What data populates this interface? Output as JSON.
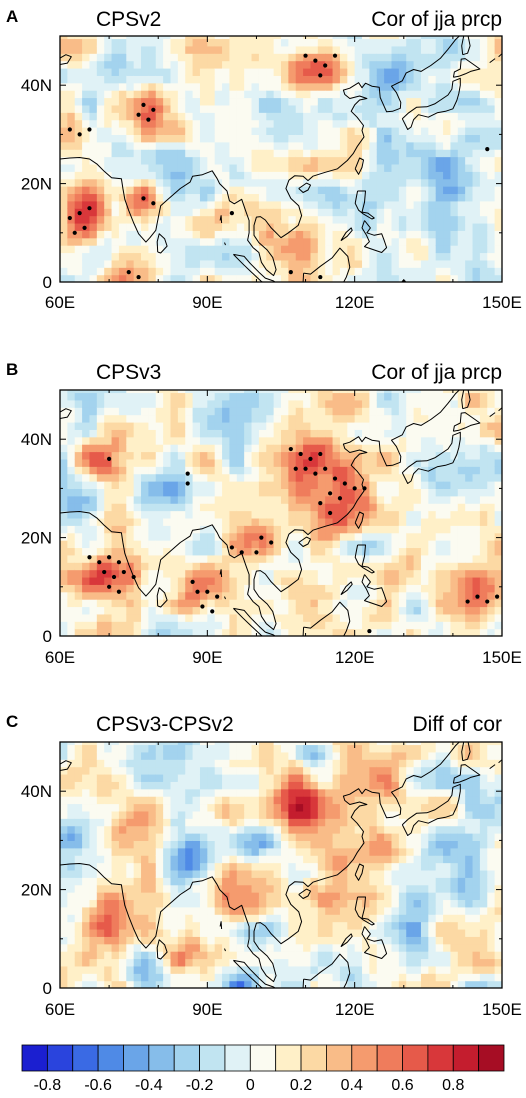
{
  "chart_data": [
    {
      "type": "heatmap",
      "panel_label": "A",
      "model_label": "CPSv2",
      "title": "Cor of jja prcp",
      "x_ticks": [
        "60E",
        "90E",
        "120E",
        "150E"
      ],
      "y_ticks": [
        "40N",
        "20N",
        "0"
      ],
      "xlim": [
        60,
        150
      ],
      "ylim": [
        0,
        50
      ],
      "blobs": [
        {
          "x": 64,
          "y": 14,
          "r": 6,
          "v": 0.55
        },
        {
          "x": 62,
          "y": 30,
          "r": 4,
          "v": 0.45
        },
        {
          "x": 78,
          "y": 35,
          "r": 5,
          "v": 0.5
        },
        {
          "x": 76,
          "y": 16,
          "r": 4,
          "v": 0.45
        },
        {
          "x": 74,
          "y": 3,
          "r": 5,
          "v": 0.4
        },
        {
          "x": 114,
          "y": 44,
          "r": 6,
          "v": 0.55
        },
        {
          "x": 95,
          "y": 14,
          "r": 5,
          "v": 0.35
        },
        {
          "x": 110,
          "y": 8,
          "r": 6,
          "v": 0.45
        },
        {
          "x": 100,
          "y": 28,
          "r": 6,
          "v": 0.25
        },
        {
          "x": 88,
          "y": 43,
          "r": 5,
          "v": 0.3
        },
        {
          "x": 122,
          "y": 12,
          "r": 4,
          "v": -0.35
        },
        {
          "x": 130,
          "y": 28,
          "r": 6,
          "v": -0.35
        },
        {
          "x": 140,
          "y": 20,
          "r": 5,
          "v": -0.35
        },
        {
          "x": 146,
          "y": 8,
          "r": 4,
          "v": -0.3
        },
        {
          "x": 126,
          "y": 42,
          "r": 5,
          "v": -0.25
        },
        {
          "x": 82,
          "y": 25,
          "r": 6,
          "v": -0.25
        },
        {
          "x": 68,
          "y": 42,
          "r": 5,
          "v": -0.2
        },
        {
          "x": 104,
          "y": 35,
          "r": 4,
          "v": -0.2
        }
      ],
      "stipples": [
        [
          62,
          31
        ],
        [
          64,
          30
        ],
        [
          66,
          31
        ],
        [
          62,
          13
        ],
        [
          64,
          14
        ],
        [
          66,
          15
        ],
        [
          63,
          10
        ],
        [
          65,
          11
        ],
        [
          77,
          36
        ],
        [
          79,
          35
        ],
        [
          76,
          34
        ],
        [
          78,
          33
        ],
        [
          77,
          17
        ],
        [
          79,
          16
        ],
        [
          74,
          2
        ],
        [
          76,
          1
        ],
        [
          110,
          46
        ],
        [
          112,
          45
        ],
        [
          114,
          44
        ],
        [
          116,
          46
        ],
        [
          113,
          42
        ],
        [
          147,
          27
        ],
        [
          95,
          14
        ],
        [
          107,
          2
        ],
        [
          113,
          1
        ],
        [
          130,
          0
        ]
      ]
    },
    {
      "type": "heatmap",
      "panel_label": "B",
      "model_label": "CPSv3",
      "title": "Cor of jja prcp",
      "x_ticks": [
        "60E",
        "90E",
        "120E",
        "150E"
      ],
      "y_ticks": [
        "40N",
        "20N",
        "0"
      ],
      "xlim": [
        60,
        150
      ],
      "ylim": [
        0,
        50
      ],
      "blobs": [
        {
          "x": 71,
          "y": 13,
          "r": 7,
          "v": 0.6
        },
        {
          "x": 89,
          "y": 8,
          "r": 5,
          "v": 0.55
        },
        {
          "x": 111,
          "y": 36,
          "r": 6,
          "v": 0.55
        },
        {
          "x": 117,
          "y": 29,
          "r": 6,
          "v": 0.55
        },
        {
          "x": 101,
          "y": 20,
          "r": 4,
          "v": 0.45
        },
        {
          "x": 96,
          "y": 18,
          "r": 3,
          "v": 0.4
        },
        {
          "x": 68,
          "y": 36,
          "r": 4,
          "v": 0.4
        },
        {
          "x": 145,
          "y": 8,
          "r": 5,
          "v": 0.5
        },
        {
          "x": 129,
          "y": 12,
          "r": 5,
          "v": 0.3
        },
        {
          "x": 82,
          "y": 30,
          "r": 5,
          "v": -0.25
        },
        {
          "x": 136,
          "y": 32,
          "r": 6,
          "v": -0.3
        },
        {
          "x": 120,
          "y": 44,
          "r": 5,
          "v": 0.3
        },
        {
          "x": 80,
          "y": 2,
          "r": 4,
          "v": -0.35
        },
        {
          "x": 95,
          "y": 45,
          "r": 5,
          "v": -0.3
        },
        {
          "x": 64,
          "y": 28,
          "r": 4,
          "v": -0.25
        },
        {
          "x": 120,
          "y": 10,
          "r": 4,
          "v": -0.3
        }
      ],
      "stipples": [
        [
          66,
          16
        ],
        [
          68,
          15
        ],
        [
          70,
          16
        ],
        [
          72,
          15
        ],
        [
          69,
          13
        ],
        [
          71,
          12
        ],
        [
          73,
          13
        ],
        [
          70,
          10
        ],
        [
          72,
          9
        ],
        [
          75,
          12
        ],
        [
          88,
          9
        ],
        [
          90,
          9
        ],
        [
          92,
          8
        ],
        [
          89,
          6
        ],
        [
          91,
          5
        ],
        [
          87,
          11
        ],
        [
          107,
          38
        ],
        [
          109,
          37
        ],
        [
          111,
          36
        ],
        [
          113,
          37
        ],
        [
          110,
          34
        ],
        [
          112,
          33
        ],
        [
          108,
          34
        ],
        [
          114,
          34
        ],
        [
          116,
          32
        ],
        [
          118,
          31
        ],
        [
          120,
          30
        ],
        [
          115,
          29
        ],
        [
          117,
          28
        ],
        [
          113,
          27
        ],
        [
          115,
          25
        ],
        [
          122,
          30
        ],
        [
          95,
          18
        ],
        [
          97,
          17
        ],
        [
          101,
          20
        ],
        [
          103,
          19
        ],
        [
          100,
          17
        ],
        [
          143,
          7
        ],
        [
          145,
          8
        ],
        [
          147,
          7
        ],
        [
          149,
          8
        ],
        [
          70,
          36
        ],
        [
          86,
          33
        ],
        [
          86,
          31
        ],
        [
          123,
          1
        ]
      ]
    },
    {
      "type": "heatmap",
      "panel_label": "C",
      "model_label": "CPSv3-CPSv2",
      "title": "Diff of cor",
      "x_ticks": [
        "60E",
        "90E",
        "120E",
        "150E"
      ],
      "y_ticks": [
        "40N",
        "20N",
        "0"
      ],
      "xlim": [
        60,
        150
      ],
      "ylim": [
        0,
        50
      ],
      "blobs": [
        {
          "x": 70,
          "y": 13,
          "r": 5,
          "v": 0.65
        },
        {
          "x": 110,
          "y": 38,
          "r": 8,
          "v": 0.55
        },
        {
          "x": 120,
          "y": 26,
          "r": 7,
          "v": 0.55
        },
        {
          "x": 127,
          "y": 42,
          "r": 5,
          "v": 0.45
        },
        {
          "x": 95,
          "y": 18,
          "r": 5,
          "v": 0.45
        },
        {
          "x": 88,
          "y": 8,
          "r": 5,
          "v": 0.4
        },
        {
          "x": 76,
          "y": 34,
          "r": 5,
          "v": 0.3
        },
        {
          "x": 148,
          "y": 5,
          "r": 3,
          "v": 0.45
        },
        {
          "x": 86,
          "y": 27,
          "r": 4,
          "v": -0.5
        },
        {
          "x": 112,
          "y": 47,
          "r": 4,
          "v": -0.6
        },
        {
          "x": 98,
          "y": 0,
          "r": 4,
          "v": -0.5
        },
        {
          "x": 63,
          "y": 31,
          "r": 4,
          "v": -0.4
        },
        {
          "x": 140,
          "y": 25,
          "r": 6,
          "v": -0.3
        },
        {
          "x": 100,
          "y": 30,
          "r": 4,
          "v": -0.3
        },
        {
          "x": 76,
          "y": 5,
          "r": 4,
          "v": -0.3
        },
        {
          "x": 132,
          "y": 12,
          "r": 5,
          "v": -0.25
        }
      ],
      "stipples": []
    }
  ],
  "colorbar": {
    "levels": [
      -0.9,
      -0.8,
      -0.7,
      -0.6,
      -0.5,
      -0.4,
      -0.3,
      -0.2,
      -0.1,
      0,
      0.1,
      0.2,
      0.3,
      0.4,
      0.5,
      0.6,
      0.7,
      0.8,
      0.9
    ],
    "labels": [
      "-0.8",
      "-0.6",
      "-0.4",
      "-0.2",
      "0",
      "0.2",
      "0.4",
      "0.6",
      "0.8"
    ],
    "colors": [
      "#1b1fd0",
      "#2a44dd",
      "#3a6ae4",
      "#4f8ae6",
      "#6aa5e8",
      "#86bdea",
      "#a3d3ee",
      "#c1e4f1",
      "#e0f2f6",
      "#fbfbf1",
      "#fff0c8",
      "#fcd9a4",
      "#f9bc88",
      "#f59b6e",
      "#ef7c5c",
      "#e65a4a",
      "#d8373a",
      "#c41d2e",
      "#a60d24"
    ]
  },
  "coastline_color": "#000000"
}
